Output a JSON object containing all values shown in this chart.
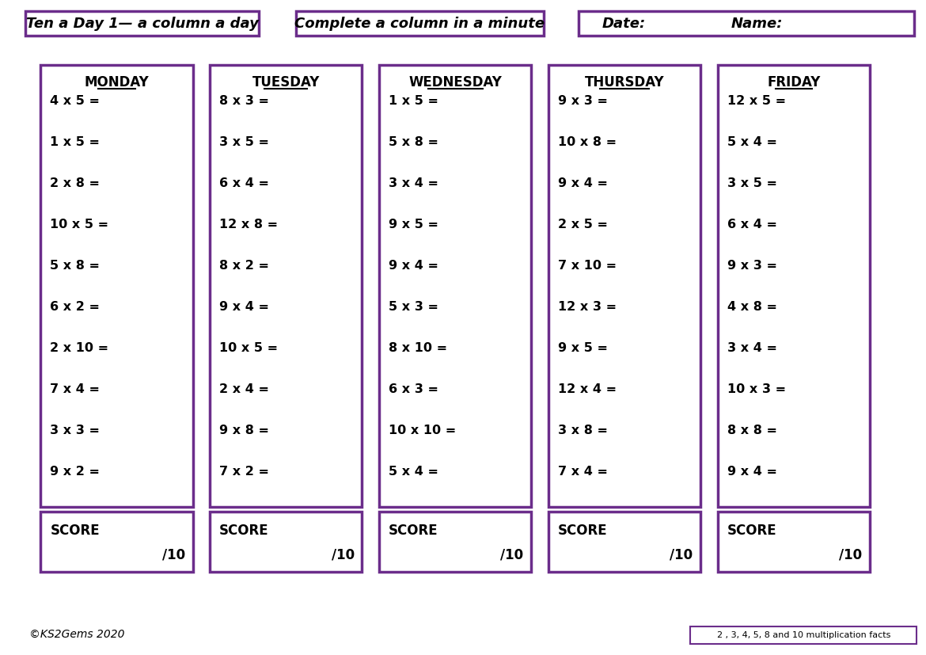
{
  "title1": "Ten a Day 1— a column a day",
  "title2": "Complete a column in a minute",
  "title3": "Date:",
  "title4": "Name:",
  "copyright": "©KS2Gems 2020",
  "facts_label": "2 , 3, 4, 5, 8 and 10 multiplication facts",
  "days": [
    "MONDAY",
    "TUESDAY",
    "WEDNESDAY",
    "THURSDAY",
    "FRIDAY"
  ],
  "questions": [
    [
      "4 x 5 =",
      "1 x 5 =",
      "2 x 8 =",
      "10 x 5 =",
      "5 x 8 =",
      "6 x 2 =",
      "2 x 10 =",
      "7 x 4 =",
      "3 x 3 =",
      "9 x 2 ="
    ],
    [
      "8 x 3 =",
      "3 x 5 =",
      "6 x 4 =",
      "12 x 8 =",
      "8 x 2 =",
      "9 x 4 =",
      "10 x 5 =",
      "2 x 4 =",
      "9 x 8 =",
      "7 x 2 ="
    ],
    [
      "1 x 5 =",
      "5 x 8 =",
      "3 x 4 =",
      "9 x 5 =",
      "9 x 4 =",
      "5 x 3 =",
      "8 x 10 =",
      "6 x 3 =",
      "10 x 10 =",
      "5 x 4 ="
    ],
    [
      "9 x 3 =",
      "10 x 8 =",
      "9 x 4 =",
      "2 x 5 =",
      "7 x 10 =",
      "12 x 3 =",
      "9 x 5 =",
      "12 x 4 =",
      "3 x 8 =",
      "7 x 4 ="
    ],
    [
      "12 x 5 =",
      "5 x 4 =",
      "3 x 5 =",
      "6 x 4 =",
      "9 x 3 =",
      "4 x 8 =",
      "3 x 4 =",
      "10 x 3 =",
      "8 x 8 =",
      "9 x 4 ="
    ]
  ],
  "purple": "#6B2D8B",
  "bg_color": "#FFFFFF",
  "font_color": "#000000",
  "score_label": "SCORE",
  "score_denom": "/10"
}
